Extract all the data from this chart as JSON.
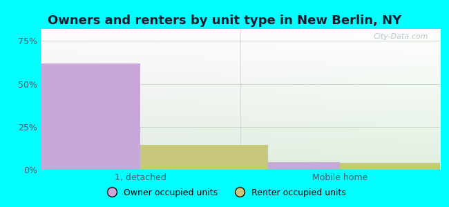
{
  "title": "Owners and renters by unit type in New Berlin, NY",
  "categories": [
    "1, detached",
    "Mobile home"
  ],
  "owner_values": [
    62.0,
    4.5
  ],
  "renter_values": [
    14.5,
    4.0
  ],
  "owner_color": "#c8a8d8",
  "renter_color": "#c8c87a",
  "owner_label": "Owner occupied units",
  "renter_label": "Renter occupied units",
  "yticks": [
    0,
    25,
    50,
    75
  ],
  "ytick_labels": [
    "0%",
    "25%",
    "50%",
    "75%"
  ],
  "ylim": [
    0,
    82
  ],
  "bg_color": "#00ffff",
  "watermark": "City-Data.com",
  "title_fontsize": 13,
  "bar_width": 0.32,
  "group_positions": [
    0.25,
    0.75
  ]
}
